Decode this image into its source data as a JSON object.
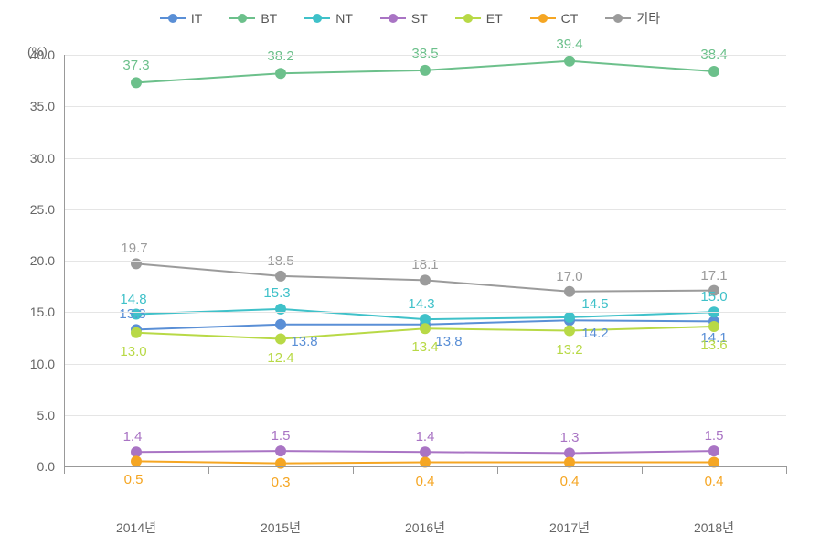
{
  "chart": {
    "type": "line",
    "y_unit": "(%)",
    "ylim": [
      0,
      40
    ],
    "ytick_step": 5,
    "yticks": [
      "0.0",
      "5.0",
      "10.0",
      "15.0",
      "20.0",
      "25.0",
      "30.0",
      "35.0",
      "40.0"
    ],
    "categories": [
      "2014년",
      "2015년",
      "2016년",
      "2017년",
      "2018년"
    ],
    "background_color": "#ffffff",
    "grid_color": "#e5e5e5",
    "axis_color": "#999999",
    "label_fontsize": 15,
    "tick_fontsize": 14,
    "marker_radius": 6,
    "line_width": 2,
    "series": [
      {
        "name": "IT",
        "color": "#5a8fd6",
        "values": [
          13.3,
          13.8,
          13.8,
          14.2,
          14.1
        ],
        "label_offset": [
          [
            -4,
            -8
          ],
          [
            26,
            10
          ],
          [
            26,
            10
          ],
          [
            28,
            6
          ],
          [
            0,
            10
          ]
        ]
      },
      {
        "name": "BT",
        "color": "#6cc08b",
        "values": [
          37.3,
          38.2,
          38.5,
          39.4,
          38.4
        ],
        "label_offset": [
          [
            0,
            -10
          ],
          [
            0,
            -10
          ],
          [
            0,
            -10
          ],
          [
            0,
            -10
          ],
          [
            0,
            -10
          ]
        ]
      },
      {
        "name": "NT",
        "color": "#3fc1c9",
        "values": [
          14.8,
          15.3,
          14.3,
          14.5,
          15.0
        ],
        "label_offset": [
          [
            -3,
            -8
          ],
          [
            -4,
            -9
          ],
          [
            -4,
            -8
          ],
          [
            28,
            -6
          ],
          [
            0,
            -8
          ]
        ]
      },
      {
        "name": "ST",
        "color": "#a974c4",
        "values": [
          1.4,
          1.5,
          1.4,
          1.3,
          1.5
        ],
        "label_offset": [
          [
            -4,
            -8
          ],
          [
            0,
            -8
          ],
          [
            0,
            -8
          ],
          [
            0,
            -8
          ],
          [
            0,
            -8
          ]
        ]
      },
      {
        "name": "ET",
        "color": "#b8d946",
        "values": [
          13.0,
          12.4,
          13.4,
          13.2,
          13.6
        ],
        "label_offset": [
          [
            -3,
            12
          ],
          [
            0,
            12
          ],
          [
            0,
            12
          ],
          [
            0,
            12
          ],
          [
            0,
            12
          ]
        ]
      },
      {
        "name": "CT",
        "color": "#f5a623",
        "values": [
          0.5,
          0.3,
          0.4,
          0.4,
          0.4
        ],
        "label_offset": [
          [
            -3,
            12
          ],
          [
            0,
            12
          ],
          [
            0,
            12
          ],
          [
            0,
            12
          ],
          [
            0,
            12
          ]
        ]
      },
      {
        "name": "기타",
        "color": "#9b9b9b",
        "values": [
          19.7,
          18.5,
          18.1,
          17.0,
          17.1
        ],
        "label_offset": [
          [
            -2,
            -8
          ],
          [
            0,
            -8
          ],
          [
            0,
            -8
          ],
          [
            0,
            -8
          ],
          [
            0,
            -8
          ]
        ]
      }
    ]
  }
}
